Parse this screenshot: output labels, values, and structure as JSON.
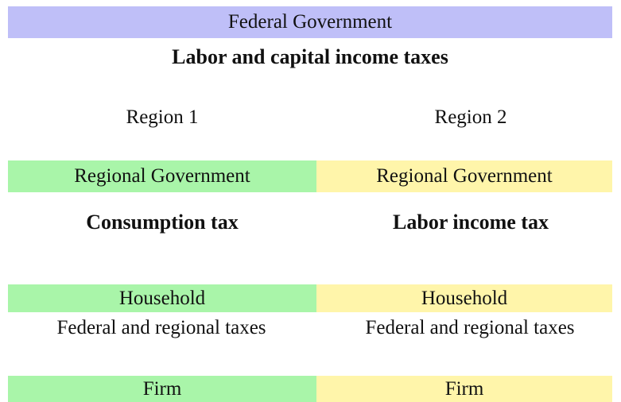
{
  "federal": {
    "label": "Federal Government",
    "taxes": "Labor and capital income taxes"
  },
  "regions": [
    {
      "name": "Region 1",
      "government": "Regional Government",
      "tax": "Consumption tax",
      "household": "Household",
      "household_taxes": "Federal and regional taxes",
      "firm": "Firm"
    },
    {
      "name": "Region 2",
      "government": "Regional Government",
      "tax": "Labor income tax",
      "household": "Household",
      "household_taxes": "Federal and regional taxes",
      "firm": "Firm"
    }
  ]
}
